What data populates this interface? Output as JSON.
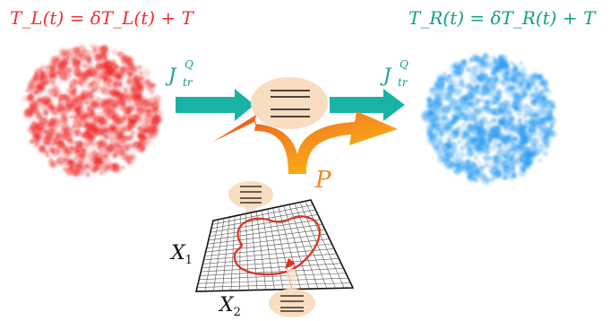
{
  "left_reservoir": {
    "equation": "T_L(t) = δT_L(t) + T",
    "color": "#ee3030",
    "cloud_color": "#f02a2a"
  },
  "right_reservoir": {
    "equation": "T_R(t) = δT_R(t) + T",
    "color": "#13a083",
    "cloud_color": "#2a9bf2"
  },
  "heat_current_label": "J^Q_tr",
  "heat_current_parts": {
    "symbol": "J",
    "sup": "Q",
    "sub": "tr"
  },
  "power_label": "P",
  "control_axes": {
    "x1": "X",
    "x1_sub": "1",
    "x2": "X",
    "x2_sub": "2"
  },
  "colors": {
    "arrow_teal": "#18b3a5",
    "power_arrow_start": "#e8511f",
    "power_arrow_end": "#ffc600",
    "level_bubble": "#f8ddc1",
    "cycle_loop": "#e03020"
  },
  "icons": [
    "thermal-reservoir-cloud",
    "energy-level-bubble",
    "heat-flow-arrow",
    "work-output-arrow",
    "parameter-grid",
    "control-cycle-loop"
  ]
}
